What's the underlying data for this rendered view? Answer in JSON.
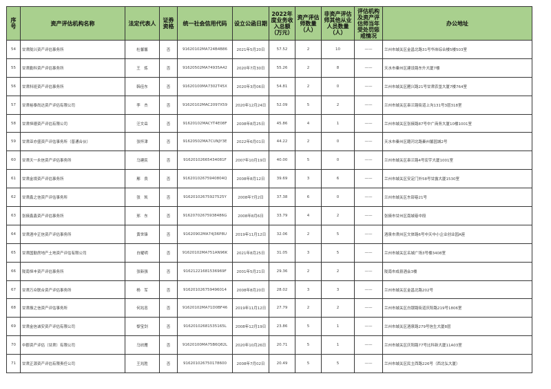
{
  "table": {
    "headers": [
      "序号",
      "资产评估机构名称",
      "法定代表人",
      "证券资格",
      "统一社会信用代码",
      "设立公函日期",
      "2022年度业务收入总额（万元）",
      "资产评估师数量（人）",
      "非资产评估师其他从业人员数量（人）",
      "评估机构及资产评估师当年受处罚惩戒情况",
      "办公地址"
    ],
    "header_bg": "#a9d08e",
    "rows": [
      [
        "54",
        "甘肃陇兴资产评估事务所",
        "杜馨馨",
        "否",
        "91620102MA724B4B86",
        "2021年5月20日",
        "57.52",
        "2",
        "10",
        "——",
        "兰州市城关区金昌北路31号华岸综合楼5楼503室"
      ],
      [
        "55",
        "甘肃勤科资产评估事务所",
        "王　炼",
        "否",
        "91620502MA74935A42",
        "2020年7月30日",
        "55.26",
        "2",
        "8",
        "——",
        "天水市秦州区建设路东升大厦7楼"
      ],
      [
        "56",
        "甘肃科班资产评估事务所",
        "韩佳东",
        "否",
        "91620100MA7302T45X",
        "2020年3月06日",
        "54.81",
        "2",
        "0",
        "——",
        "兰州市城关区雁兴路21号甘肃农垦大厦7楼764室"
      ],
      [
        "57",
        "甘肃裕泰尚达资产评估有限公司",
        "李　杰",
        "否",
        "91620102MAC2097X59",
        "2020年12月24日",
        "52.09",
        "5",
        "2",
        "——",
        "兰州市城关区皋兰路街道上沟131号3层318室"
      ],
      [
        "58",
        "甘肃恒德资产评估有限公司",
        "汪文岳",
        "否",
        "91620102MACYT4E08F",
        "2008年8月25日",
        "45.86",
        "4",
        "1",
        "——",
        "兰州市城关区张掖路87号中广商务大厦10楼1001室"
      ],
      [
        "59",
        "甘肃亚亦盛资产评估事务所（普通合伙）",
        "张怀津",
        "否",
        "91620502MA7CUNJY3E",
        "2022年6月01日",
        "44.22",
        "2",
        "0",
        "——",
        "天水市秦州区藉河北路秦州馨园城2号"
      ],
      [
        "60",
        "甘肃天一永信资产评估事务所",
        "马建民",
        "否",
        "91620102665434081F",
        "2007年10月19日",
        "40.00",
        "5",
        "0",
        "——",
        "兰州市城关区皋兰路4号宏宇大厦1001室"
      ],
      [
        "61",
        "甘肃金境资产评估事务所",
        "鄢　良",
        "否",
        "91620102675940804Q",
        "2008年8月12日",
        "39.69",
        "3",
        "6",
        "——",
        "兰州市城关区安定门外58号甘露大厦1530室"
      ],
      [
        "62",
        "甘肃鑫之信资产评估事务所",
        "张　凯",
        "否",
        "91620102675927525Y",
        "2008年7月2日",
        "37.38",
        "6",
        "0",
        "——",
        "兰州市城关区东部巷21号"
      ],
      [
        "63",
        "张掖鑫鑫资产评估事务所",
        "邢　东",
        "否",
        "91620702675938486G",
        "2008年8月6日",
        "33.79",
        "4",
        "2",
        "——",
        "张掖市甘州区南城巷中段"
      ],
      [
        "64",
        "甘肃酒中正信资产评估事务所",
        "黄世锋",
        "否",
        "91620902MA74J36P8U",
        "2019年11月12日",
        "32.06",
        "2",
        "5",
        "——",
        "酒泉市肃州区文体路6号中天中小企业创业园A座"
      ],
      [
        "65",
        "甘肃国勤房地产土地资产评估有限公司",
        "白耀明",
        "否",
        "91620102MA751AN96K",
        "2021年8月25日",
        "31.05",
        "3",
        "5",
        "——",
        "兰州市城关区名城广场3号楼3408室"
      ],
      [
        "66",
        "陇南恒丰资产评估事务所",
        "张新强",
        "否",
        "91621221681536969F",
        "2001年5月21日",
        "29.36",
        "2",
        "2",
        "——",
        "陇南市成县酒会3楼"
      ],
      [
        "67",
        "甘肃万众联合资产评估事务所",
        "杨　军",
        "否",
        "916201026759496014",
        "2008年8月20日",
        "28.02",
        "3",
        "3",
        "——",
        "兰州市城关区金昌北路202号"
      ],
      [
        "68",
        "甘肃振之信资产评估事务所",
        "何兆忠",
        "否",
        "91620102MA71D0BF46",
        "2019年11月12日",
        "27.79",
        "2",
        "2",
        "——",
        "兰州市城关区白银路街道庆阳路219号1806室"
      ],
      [
        "69",
        "甘肃金信诚安资产评估有限公司",
        "黎宝剑",
        "否",
        "91620102681535165L",
        "2008年12月19日",
        "23.86",
        "5",
        "1",
        "——",
        "兰州市城关区酒泉路279号信生大厦8层"
      ],
      [
        "70",
        "中郡资产评估（甘肃）有限公司",
        "马欣雁",
        "否",
        "91620100MA75B6Q82L",
        "2020年10月26日",
        "20.71",
        "5",
        "1",
        "——",
        "兰州市城关区庆阳路77号比科新大厦11A03室"
      ],
      [
        "71",
        "甘肃正源资产评估有限责任公司",
        "王兆胜",
        "否",
        "916201026750178600",
        "2008年7月02日",
        "20.49",
        "5",
        "5",
        "——",
        "兰州市城关区民主西路226号（西北弘大厦）"
      ]
    ]
  }
}
